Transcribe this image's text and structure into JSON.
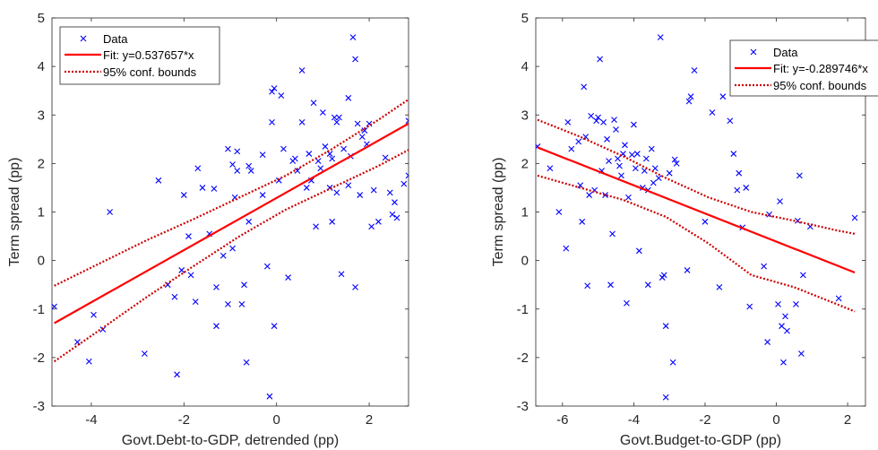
{
  "chart_data": [
    {
      "type": "scatter",
      "xlabel": "Govt.Debt-to-GDP, detrended (pp)",
      "ylabel": "Term spread (pp)",
      "xlim": [
        -4.85,
        2.85
      ],
      "ylim": [
        -3,
        5
      ],
      "xticks": [
        -4,
        -2,
        0,
        2
      ],
      "yticks": [
        -3,
        -2,
        -1,
        0,
        1,
        2,
        3,
        4,
        5
      ],
      "grid": false,
      "legend_position": "top-left",
      "legend": {
        "data": "Data",
        "fit": "Fit: y=0.537657*x",
        "bounds": "95% conf. bounds"
      },
      "colors": {
        "data": "#0000ff",
        "fit": "#ff0000",
        "bounds": "#cc0000"
      },
      "fit": {
        "slope": 0.537657,
        "intercept": 1.29
      },
      "bounds": {
        "x": [
          -4.8,
          -3.8,
          -2.8,
          -1.8,
          -0.8,
          0.2,
          1.2,
          2.2,
          2.85
        ],
        "upper": [
          -0.52,
          -0.05,
          0.42,
          0.85,
          1.3,
          1.75,
          2.3,
          2.9,
          3.32
        ],
        "lower": [
          -2.08,
          -1.42,
          -0.75,
          -0.12,
          0.5,
          1.05,
          1.5,
          1.95,
          2.28
        ]
      },
      "points": [
        [
          -4.8,
          -0.95
        ],
        [
          -4.3,
          -1.68
        ],
        [
          -4.05,
          -2.08
        ],
        [
          -3.95,
          -1.12
        ],
        [
          -3.75,
          -1.42
        ],
        [
          -3.6,
          1.0
        ],
        [
          -2.85,
          -1.92
        ],
        [
          -2.55,
          1.65
        ],
        [
          -2.35,
          -0.5
        ],
        [
          -2.2,
          -0.75
        ],
        [
          -2.15,
          -2.35
        ],
        [
          -2.05,
          -0.2
        ],
        [
          -2.0,
          1.35
        ],
        [
          -1.9,
          0.5
        ],
        [
          -1.85,
          -0.3
        ],
        [
          -1.75,
          -0.85
        ],
        [
          -1.7,
          1.9
        ],
        [
          -1.6,
          1.5
        ],
        [
          -1.45,
          0.55
        ],
        [
          -1.35,
          1.48
        ],
        [
          -1.3,
          -0.55
        ],
        [
          -1.3,
          -1.35
        ],
        [
          -1.15,
          0.1
        ],
        [
          -1.05,
          -0.9
        ],
        [
          -1.05,
          2.3
        ],
        [
          -0.95,
          0.25
        ],
        [
          -0.95,
          1.98
        ],
        [
          -0.9,
          1.3
        ],
        [
          -0.85,
          2.25
        ],
        [
          -0.85,
          1.85
        ],
        [
          -0.75,
          -0.9
        ],
        [
          -0.7,
          -0.5
        ],
        [
          -0.65,
          -2.1
        ],
        [
          -0.6,
          1.95
        ],
        [
          -0.55,
          1.85
        ],
        [
          -0.6,
          0.8
        ],
        [
          -0.3,
          2.18
        ],
        [
          -0.3,
          1.35
        ],
        [
          -0.2,
          -0.12
        ],
        [
          -0.15,
          -2.8
        ],
        [
          -0.1,
          2.85
        ],
        [
          -0.05,
          3.55
        ],
        [
          -0.1,
          3.48
        ],
        [
          0.05,
          1.65
        ],
        [
          -0.05,
          -1.35
        ],
        [
          0.1,
          3.4
        ],
        [
          0.25,
          -0.35
        ],
        [
          0.15,
          2.3
        ],
        [
          0.35,
          2.05
        ],
        [
          0.4,
          2.1
        ],
        [
          0.45,
          1.85
        ],
        [
          0.55,
          2.85
        ],
        [
          0.55,
          3.92
        ],
        [
          0.65,
          1.5
        ],
        [
          0.7,
          2.2
        ],
        [
          0.75,
          1.65
        ],
        [
          0.8,
          3.25
        ],
        [
          0.85,
          0.7
        ],
        [
          0.9,
          2.05
        ],
        [
          0.95,
          1.9
        ],
        [
          1.0,
          3.05
        ],
        [
          1.05,
          2.35
        ],
        [
          1.15,
          2.2
        ],
        [
          1.15,
          1.5
        ],
        [
          1.2,
          2.1
        ],
        [
          1.2,
          0.8
        ],
        [
          1.25,
          2.95
        ],
        [
          1.3,
          1.4
        ],
        [
          1.35,
          2.95
        ],
        [
          1.3,
          2.85
        ],
        [
          1.4,
          -0.28
        ],
        [
          1.45,
          2.3
        ],
        [
          1.55,
          1.55
        ],
        [
          1.55,
          3.35
        ],
        [
          1.6,
          2.15
        ],
        [
          1.65,
          4.6
        ],
        [
          1.7,
          4.15
        ],
        [
          1.75,
          2.82
        ],
        [
          1.7,
          -0.55
        ],
        [
          1.8,
          1.35
        ],
        [
          1.85,
          2.55
        ],
        [
          1.9,
          2.68
        ],
        [
          1.95,
          2.4
        ],
        [
          2.0,
          2.82
        ],
        [
          2.05,
          0.7
        ],
        [
          2.1,
          1.45
        ],
        [
          2.2,
          0.8
        ],
        [
          2.35,
          2.12
        ],
        [
          2.45,
          1.4
        ],
        [
          2.5,
          0.95
        ],
        [
          2.55,
          1.2
        ],
        [
          2.6,
          0.88
        ],
        [
          2.75,
          1.58
        ],
        [
          2.85,
          2.88
        ],
        [
          2.85,
          1.75
        ]
      ]
    },
    {
      "type": "scatter",
      "xlabel": "Govt.Budget-to-GDP (pp)",
      "ylabel": "Term spread (pp)",
      "xlim": [
        -6.75,
        2.5
      ],
      "ylim": [
        -3,
        5
      ],
      "xticks": [
        -6,
        -4,
        -2,
        0,
        2
      ],
      "yticks": [
        -3,
        -2,
        -1,
        0,
        1,
        2,
        3,
        4,
        5
      ],
      "grid": false,
      "legend_position": "top-right",
      "legend": {
        "data": "Data",
        "fit": "Fit: y=-0.289746*x",
        "bounds": "95% conf. bounds"
      },
      "colors": {
        "data": "#0000ff",
        "fit": "#ff0000",
        "bounds": "#cc0000"
      },
      "fit": {
        "slope": -0.289746,
        "intercept": 0.39
      },
      "bounds": {
        "x": [
          -6.7,
          -5.5,
          -4.3,
          -3.1,
          -1.9,
          -0.7,
          0.5,
          1.7,
          2.2
        ],
        "upper": [
          2.9,
          2.55,
          2.15,
          1.7,
          1.3,
          1.0,
          0.82,
          0.62,
          0.55
        ],
        "lower": [
          1.75,
          1.5,
          1.25,
          0.9,
          0.35,
          -0.3,
          -0.55,
          -0.9,
          -1.05
        ]
      },
      "points": [
        [
          -6.7,
          2.35
        ],
        [
          -6.35,
          1.9
        ],
        [
          -6.1,
          1.0
        ],
        [
          -5.9,
          0.25
        ],
        [
          -5.85,
          2.85
        ],
        [
          -5.75,
          2.3
        ],
        [
          -5.55,
          2.45
        ],
        [
          -5.5,
          1.55
        ],
        [
          -5.45,
          0.8
        ],
        [
          -5.4,
          3.58
        ],
        [
          -5.35,
          2.55
        ],
        [
          -5.3,
          -0.52
        ],
        [
          -5.25,
          1.35
        ],
        [
          -5.2,
          2.98
        ],
        [
          -5.1,
          1.45
        ],
        [
          -5.05,
          2.88
        ],
        [
          -5.0,
          2.95
        ],
        [
          -4.95,
          4.15
        ],
        [
          -4.9,
          1.85
        ],
        [
          -4.85,
          2.85
        ],
        [
          -4.8,
          1.35
        ],
        [
          -4.75,
          2.5
        ],
        [
          -4.7,
          2.05
        ],
        [
          -4.65,
          -0.5
        ],
        [
          -4.6,
          0.55
        ],
        [
          -4.55,
          2.9
        ],
        [
          -4.5,
          2.7
        ],
        [
          -4.45,
          2.1
        ],
        [
          -4.4,
          1.95
        ],
        [
          -4.35,
          1.75
        ],
        [
          -4.3,
          2.2
        ],
        [
          -4.25,
          2.38
        ],
        [
          -4.2,
          -0.88
        ],
        [
          -4.15,
          1.3
        ],
        [
          -4.05,
          2.18
        ],
        [
          -4.0,
          2.8
        ],
        [
          -3.95,
          1.9
        ],
        [
          -3.9,
          2.2
        ],
        [
          -3.85,
          0.2
        ],
        [
          -3.75,
          1.5
        ],
        [
          -3.7,
          1.85
        ],
        [
          -3.65,
          2.1
        ],
        [
          -3.6,
          -0.5
        ],
        [
          -3.6,
          1.45
        ],
        [
          -3.5,
          2.3
        ],
        [
          -3.45,
          1.6
        ],
        [
          -3.4,
          1.9
        ],
        [
          -3.3,
          1.7
        ],
        [
          -3.25,
          4.6
        ],
        [
          -3.2,
          -0.35
        ],
        [
          -3.15,
          -0.3
        ],
        [
          -3.1,
          -2.82
        ],
        [
          -3.1,
          -1.35
        ],
        [
          -3.0,
          1.8
        ],
        [
          -2.9,
          -2.1
        ],
        [
          -2.85,
          2.08
        ],
        [
          -2.8,
          2.0
        ],
        [
          -2.5,
          -0.2
        ],
        [
          -2.45,
          3.28
        ],
        [
          -2.4,
          3.38
        ],
        [
          -2.3,
          3.92
        ],
        [
          -2.0,
          0.8
        ],
        [
          -1.8,
          3.05
        ],
        [
          -1.6,
          -0.55
        ],
        [
          -1.5,
          3.38
        ],
        [
          -1.3,
          2.88
        ],
        [
          -1.2,
          2.2
        ],
        [
          -1.1,
          1.45
        ],
        [
          -1.05,
          1.8
        ],
        [
          -0.95,
          0.68
        ],
        [
          -0.85,
          1.5
        ],
        [
          -0.75,
          -0.95
        ],
        [
          -0.35,
          -0.12
        ],
        [
          -0.25,
          -1.68
        ],
        [
          -0.2,
          0.95
        ],
        [
          0.05,
          -0.9
        ],
        [
          0.1,
          1.22
        ],
        [
          0.15,
          -1.35
        ],
        [
          0.2,
          -2.1
        ],
        [
          0.25,
          -1.15
        ],
        [
          0.3,
          -1.45
        ],
        [
          0.55,
          -0.9
        ],
        [
          0.6,
          0.82
        ],
        [
          0.65,
          1.75
        ],
        [
          0.7,
          -1.92
        ],
        [
          0.75,
          -0.3
        ],
        [
          0.95,
          0.7
        ],
        [
          1.75,
          -0.78
        ],
        [
          2.2,
          0.88
        ]
      ]
    }
  ]
}
